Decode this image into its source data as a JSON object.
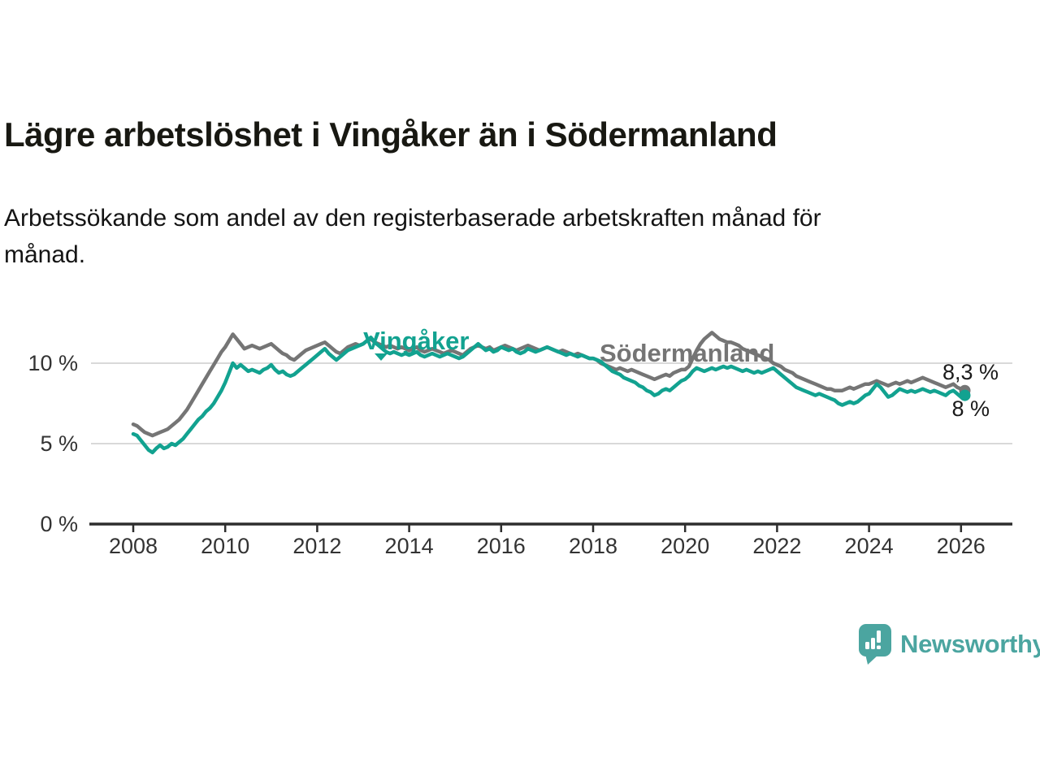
{
  "header": {
    "title": "Lägre arbetslöshet i Vingåker än i Södermanland",
    "subtitle_lines": [
      "Arbetssökande som andel av den registerbaserade arbetskraften månad för",
      "månad."
    ]
  },
  "chart_data": {
    "type": "line",
    "x_range": [
      "2008-01",
      "2026-02"
    ],
    "x_start_year": 2008,
    "points_per_year": 12,
    "x_ticks": [
      2008,
      2010,
      2012,
      2014,
      2016,
      2018,
      2020,
      2022,
      2024,
      2026
    ],
    "y_ticks": [
      {
        "value": 0,
        "label": "0 %"
      },
      {
        "value": 5,
        "label": "5 %"
      },
      {
        "value": 10,
        "label": "10 %"
      }
    ],
    "ylim": [
      0,
      13.4
    ],
    "grid": "horizontal-only",
    "legend_position": "inline-labels",
    "unit": "%",
    "series": [
      {
        "name": "Vingåker",
        "color": "#12A290",
        "end_label": "8 %",
        "end_value": 8.0,
        "values": [
          5.6,
          5.5,
          5.2,
          4.9,
          4.6,
          4.45,
          4.7,
          4.9,
          4.7,
          4.8,
          5.0,
          4.9,
          5.1,
          5.3,
          5.6,
          5.9,
          6.2,
          6.5,
          6.7,
          7.0,
          7.2,
          7.5,
          7.9,
          8.3,
          8.8,
          9.4,
          10.0,
          9.7,
          9.9,
          9.7,
          9.5,
          9.6,
          9.5,
          9.4,
          9.6,
          9.7,
          9.9,
          9.6,
          9.4,
          9.5,
          9.3,
          9.2,
          9.3,
          9.5,
          9.7,
          9.9,
          10.1,
          10.3,
          10.5,
          10.7,
          10.9,
          10.6,
          10.4,
          10.2,
          10.4,
          10.6,
          10.8,
          10.9,
          11.0,
          11.1,
          11.2,
          11.4,
          11.6,
          11.3,
          11.1,
          10.9,
          10.7,
          10.6,
          10.7,
          10.6,
          10.5,
          10.6,
          10.5,
          10.6,
          10.7,
          10.5,
          10.4,
          10.5,
          10.6,
          10.5,
          10.4,
          10.5,
          10.6,
          10.5,
          10.4,
          10.3,
          10.4,
          10.6,
          10.8,
          11.0,
          11.2,
          11.0,
          10.8,
          10.9,
          10.7,
          10.8,
          11.0,
          10.9,
          10.8,
          10.9,
          10.7,
          10.6,
          10.7,
          10.9,
          10.8,
          10.7,
          10.8,
          10.9,
          11.0,
          10.9,
          10.8,
          10.7,
          10.6,
          10.5,
          10.6,
          10.5,
          10.4,
          10.5,
          10.4,
          10.3,
          10.3,
          10.2,
          10.1,
          9.9,
          9.7,
          9.5,
          9.4,
          9.3,
          9.1,
          9.0,
          8.9,
          8.8,
          8.6,
          8.5,
          8.3,
          8.2,
          8.0,
          8.1,
          8.3,
          8.4,
          8.3,
          8.5,
          8.7,
          8.9,
          9.0,
          9.2,
          9.5,
          9.7,
          9.6,
          9.5,
          9.6,
          9.7,
          9.6,
          9.7,
          9.8,
          9.7,
          9.8,
          9.7,
          9.6,
          9.5,
          9.6,
          9.5,
          9.4,
          9.5,
          9.4,
          9.5,
          9.6,
          9.7,
          9.5,
          9.3,
          9.1,
          8.9,
          8.7,
          8.5,
          8.4,
          8.3,
          8.2,
          8.1,
          8.0,
          8.1,
          8.0,
          7.9,
          7.8,
          7.7,
          7.5,
          7.4,
          7.5,
          7.6,
          7.5,
          7.6,
          7.8,
          8.0,
          8.1,
          8.4,
          8.7,
          8.5,
          8.2,
          7.9,
          8.0,
          8.2,
          8.4,
          8.3,
          8.2,
          8.3,
          8.2,
          8.3,
          8.4,
          8.3,
          8.2,
          8.3,
          8.2,
          8.1,
          8.0,
          8.2,
          8.3,
          8.1,
          7.9,
          8.0
        ]
      },
      {
        "name": "Södermanland",
        "color": "#757575",
        "end_label": "8,3 %",
        "end_value": 8.3,
        "values": [
          6.2,
          6.1,
          5.9,
          5.7,
          5.6,
          5.5,
          5.6,
          5.7,
          5.8,
          5.9,
          6.1,
          6.3,
          6.5,
          6.8,
          7.1,
          7.5,
          7.9,
          8.3,
          8.7,
          9.1,
          9.5,
          9.9,
          10.3,
          10.7,
          11.0,
          11.4,
          11.8,
          11.5,
          11.2,
          10.9,
          11.0,
          11.1,
          11.0,
          10.9,
          11.0,
          11.1,
          11.2,
          11.0,
          10.8,
          10.6,
          10.5,
          10.3,
          10.2,
          10.4,
          10.6,
          10.8,
          10.9,
          11.0,
          11.1,
          11.2,
          11.3,
          11.1,
          10.9,
          10.7,
          10.6,
          10.8,
          11.0,
          11.1,
          11.2,
          11.1,
          11.2,
          11.4,
          11.5,
          11.3,
          11.2,
          11.1,
          11.0,
          11.1,
          11.0,
          10.9,
          11.0,
          10.9,
          10.8,
          10.9,
          11.0,
          10.8,
          10.7,
          10.8,
          10.9,
          10.8,
          10.7,
          10.6,
          10.7,
          10.8,
          10.7,
          10.6,
          10.5,
          10.7,
          10.9,
          11.0,
          11.1,
          11.0,
          10.9,
          11.0,
          10.8,
          10.9,
          11.0,
          11.1,
          11.0,
          10.9,
          10.8,
          10.9,
          11.0,
          11.1,
          11.0,
          10.9,
          10.8,
          10.9,
          11.0,
          10.9,
          10.8,
          10.7,
          10.8,
          10.7,
          10.6,
          10.5,
          10.6,
          10.5,
          10.4,
          10.3,
          10.3,
          10.2,
          10.0,
          9.9,
          9.8,
          9.7,
          9.6,
          9.7,
          9.6,
          9.5,
          9.6,
          9.5,
          9.4,
          9.3,
          9.2,
          9.1,
          9.0,
          9.1,
          9.2,
          9.3,
          9.2,
          9.4,
          9.5,
          9.6,
          9.6,
          9.8,
          10.3,
          10.8,
          11.2,
          11.5,
          11.7,
          11.9,
          11.7,
          11.5,
          11.4,
          11.3,
          11.3,
          11.2,
          11.1,
          10.9,
          10.8,
          10.7,
          10.6,
          10.5,
          10.4,
          10.3,
          10.2,
          10.0,
          9.9,
          9.8,
          9.6,
          9.5,
          9.4,
          9.2,
          9.1,
          9.0,
          8.9,
          8.8,
          8.7,
          8.6,
          8.5,
          8.4,
          8.4,
          8.3,
          8.3,
          8.3,
          8.4,
          8.5,
          8.4,
          8.5,
          8.6,
          8.7,
          8.7,
          8.8,
          8.9,
          8.8,
          8.7,
          8.6,
          8.7,
          8.8,
          8.7,
          8.8,
          8.9,
          8.8,
          8.9,
          9.0,
          9.1,
          9.0,
          8.9,
          8.8,
          8.7,
          8.6,
          8.5,
          8.6,
          8.7,
          8.5,
          8.4,
          8.3
        ]
      }
    ],
    "title": "Lägre arbetslöshet i Vingåker än i Södermanland",
    "xlabel": "",
    "ylabel": ""
  },
  "footer": {
    "brand": "Newsworthy",
    "brand_color": "#4BA5A0"
  }
}
